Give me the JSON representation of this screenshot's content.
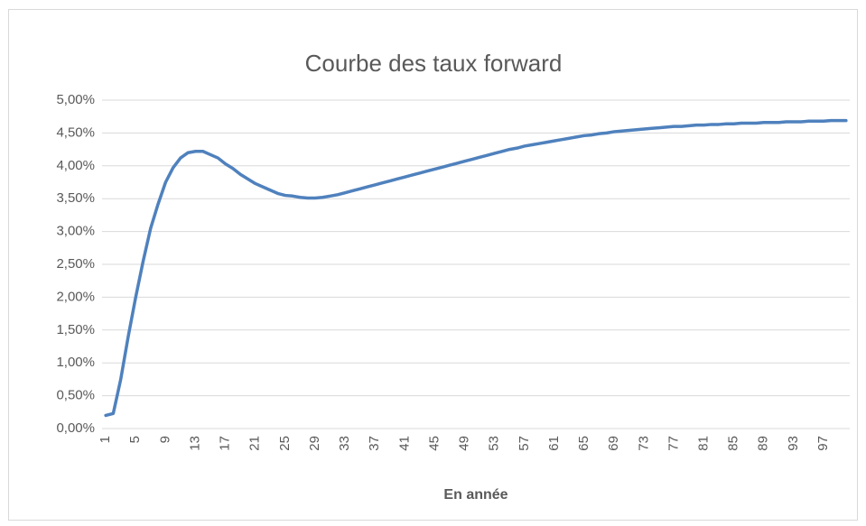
{
  "chart_data": {
    "type": "line",
    "title": "Courbe des taux forward",
    "x_label": "En année",
    "categories": [
      1,
      null,
      null,
      null,
      5,
      null,
      null,
      null,
      9,
      null,
      null,
      null,
      13,
      null,
      null,
      null,
      17,
      null,
      null,
      null,
      21,
      null,
      null,
      null,
      25,
      null,
      null,
      null,
      29,
      null,
      null,
      null,
      33,
      null,
      null,
      null,
      37,
      null,
      null,
      null,
      41,
      null,
      null,
      null,
      45,
      null,
      null,
      null,
      49,
      null,
      null,
      null,
      53,
      null,
      null,
      null,
      57,
      null,
      null,
      null,
      61,
      null,
      null,
      null,
      65,
      null,
      null,
      null,
      69,
      null,
      null,
      null,
      73,
      null,
      null,
      null,
      77,
      null,
      null,
      null,
      81,
      null,
      null,
      null,
      85,
      null,
      null,
      null,
      89,
      null,
      null,
      null,
      93,
      null,
      null,
      null,
      97,
      null,
      null,
      null
    ],
    "values": [
      0.2,
      0.23,
      0.75,
      1.4,
      2.0,
      2.55,
      3.05,
      3.42,
      3.75,
      3.97,
      4.12,
      4.2,
      4.22,
      4.22,
      4.17,
      4.12,
      4.03,
      3.96,
      3.87,
      3.8,
      3.73,
      3.68,
      3.63,
      3.58,
      3.55,
      3.54,
      3.52,
      3.51,
      3.51,
      3.52,
      3.54,
      3.56,
      3.59,
      3.62,
      3.65,
      3.68,
      3.71,
      3.74,
      3.77,
      3.8,
      3.83,
      3.86,
      3.89,
      3.92,
      3.95,
      3.98,
      4.01,
      4.04,
      4.07,
      4.1,
      4.13,
      4.16,
      4.19,
      4.22,
      4.25,
      4.27,
      4.3,
      4.32,
      4.34,
      4.36,
      4.38,
      4.4,
      4.42,
      4.44,
      4.46,
      4.47,
      4.49,
      4.5,
      4.52,
      4.53,
      4.54,
      4.55,
      4.56,
      4.57,
      4.58,
      4.59,
      4.6,
      4.6,
      4.61,
      4.62,
      4.62,
      4.63,
      4.63,
      4.64,
      4.64,
      4.65,
      4.65,
      4.65,
      4.66,
      4.66,
      4.66,
      4.67,
      4.67,
      4.67,
      4.68,
      4.68,
      4.68,
      4.69,
      4.69,
      4.69
    ],
    "color": "#4f81bd",
    "ylim": [
      0,
      5
    ],
    "yticks": [
      {
        "value": 0,
        "label": "0,00%"
      },
      {
        "value": 0.5,
        "label": "0,50%"
      },
      {
        "value": 1,
        "label": "1,00%"
      },
      {
        "value": 1.5,
        "label": "1,50%"
      },
      {
        "value": 2,
        "label": "2,00%"
      },
      {
        "value": 2.5,
        "label": "2,50%"
      },
      {
        "value": 3,
        "label": "3,00%"
      },
      {
        "value": 3.5,
        "label": "3,50%"
      },
      {
        "value": 4,
        "label": "4,00%"
      },
      {
        "value": 4.5,
        "label": "4,50%"
      },
      {
        "value": 5,
        "label": "5,00%"
      }
    ],
    "grid": true
  }
}
